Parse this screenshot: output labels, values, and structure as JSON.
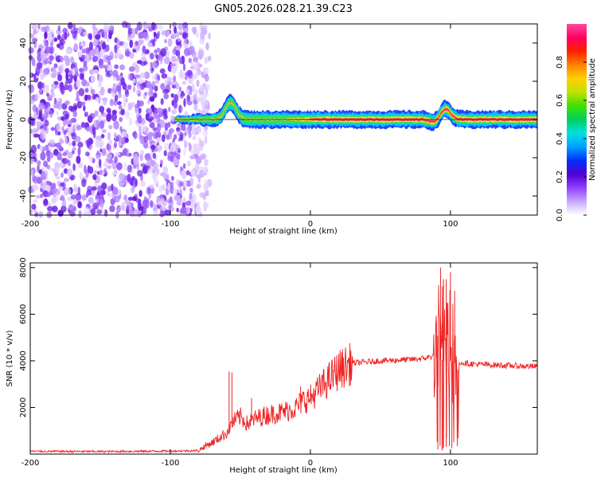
{
  "title": "GN05.2026.028.21.39.C23",
  "chart_data": [
    {
      "type": "heatmap",
      "title": "GN05.2026.028.21.39.C23",
      "xlabel": "Height of straight line (km)",
      "ylabel": "Frequency (Hz)",
      "xlim": [
        -200,
        162
      ],
      "ylim": [
        -50,
        50
      ],
      "x_ticks": [
        -200,
        -100,
        0,
        100
      ],
      "x_tick_labels": [
        "-200",
        "-100",
        "0",
        "100"
      ],
      "y_ticks": [
        -40,
        -20,
        0,
        20,
        40
      ],
      "y_tick_labels": [
        "-40",
        "-20",
        "0",
        "20",
        "40"
      ],
      "noise_region_x": [
        -200,
        -72
      ],
      "signal_band": {
        "x_start": -97,
        "x_end": 162,
        "center_frequency_hz": 0,
        "features": [
          {
            "x": -57,
            "frequency_hz": 9
          },
          {
            "x": -20,
            "frequency_hz": 0
          },
          {
            "x": 50,
            "frequency_hz": 0
          },
          {
            "x": 90,
            "frequency_hz": -2
          },
          {
            "x": 96,
            "frequency_hz": 6
          }
        ]
      },
      "colorbar": {
        "label": "Normalized spectral amplitude",
        "range": [
          0,
          1
        ],
        "ticks": [
          0.0,
          0.2,
          0.4,
          0.6,
          0.8
        ],
        "tick_labels": [
          "0.0",
          "0.2",
          "0.4",
          "0.6",
          "0.8"
        ],
        "colors": [
          "#ffffff",
          "#c8a8ff",
          "#9040ff",
          "#5000d0",
          "#0030ff",
          "#00a0ff",
          "#00e0e0",
          "#00d060",
          "#40e000",
          "#c0e000",
          "#ffd000",
          "#ff8000",
          "#ff2000",
          "#ff0060",
          "#ff4aa0"
        ]
      }
    },
    {
      "type": "line",
      "xlabel": "Height of straight line (km)",
      "ylabel": "SNR (10 * v/v)",
      "xlim": [
        -200,
        162
      ],
      "ylim": [
        0,
        8200
      ],
      "x_ticks": [
        -200,
        -100,
        0,
        100
      ],
      "x_tick_labels": [
        "-200",
        "-100",
        "0",
        "100"
      ],
      "y_ticks": [
        2000,
        4000,
        6000,
        8000
      ],
      "y_tick_labels": [
        "2000",
        "4000",
        "6000",
        "8000"
      ],
      "color": "#ee2222",
      "series": [
        {
          "name": "SNR",
          "x": [
            -200,
            -150,
            -100,
            -80,
            -75,
            -70,
            -60,
            -55,
            -50,
            -45,
            -40,
            -30,
            -20,
            -10,
            -5,
            0,
            10,
            20,
            30,
            50,
            70,
            80,
            88,
            92,
            95,
            98,
            100,
            103,
            106,
            110,
            120,
            140,
            162
          ],
          "values": [
            120,
            110,
            130,
            150,
            350,
            500,
            900,
            1400,
            1600,
            1300,
            1500,
            1700,
            1800,
            2000,
            2300,
            2400,
            3000,
            3600,
            3900,
            4000,
            4050,
            4100,
            4200,
            4100,
            4000,
            4000,
            4000,
            3900,
            3950,
            3900,
            3850,
            3800,
            3750
          ]
        }
      ],
      "spikes": [
        {
          "x": -58,
          "value": 3550
        },
        {
          "x": -56,
          "value": 3500
        },
        {
          "x": -42,
          "value": 2400
        },
        {
          "x": -7,
          "value": 2900
        },
        {
          "x": 90,
          "value": 5700
        },
        {
          "x": 93,
          "value": 8000
        },
        {
          "x": 95,
          "value": 7500
        },
        {
          "x": 97,
          "value": 7500
        },
        {
          "x": 100,
          "value": 7800
        },
        {
          "x": 103,
          "value": 7000
        }
      ],
      "dips": [
        {
          "x": 91,
          "value": 200
        },
        {
          "x": 94,
          "value": 150
        },
        {
          "x": 97,
          "value": 300
        },
        {
          "x": 101,
          "value": 250
        }
      ]
    }
  ]
}
